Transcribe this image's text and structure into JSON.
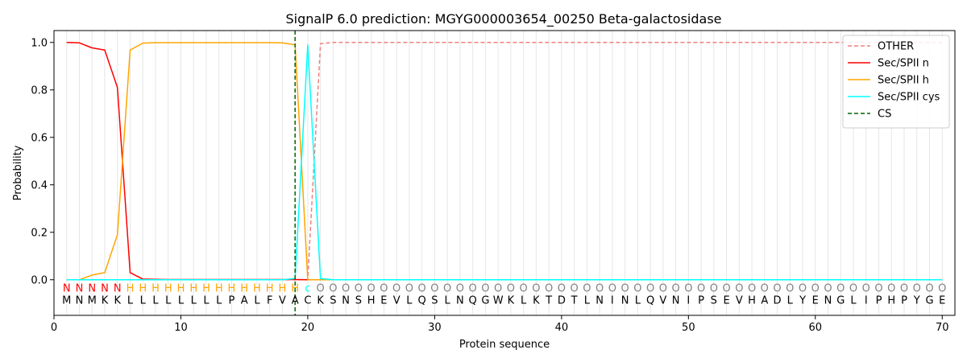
{
  "chart_data": {
    "type": "line",
    "title": "SignalP 6.0 prediction: MGYG000003654_00250 Beta-galactosidase",
    "xlabel": "Protein sequence",
    "ylabel": "Probability",
    "xlim": [
      0,
      71
    ],
    "ylim": [
      -0.15,
      1.05
    ],
    "xticks": [
      0,
      10,
      20,
      30,
      40,
      50,
      60,
      70
    ],
    "yticks": [
      0.0,
      0.2,
      0.4,
      0.6,
      0.8,
      1.0
    ],
    "ytick_labels": [
      "0.0",
      "0.2",
      "0.4",
      "0.6",
      "0.8",
      "1.0"
    ],
    "grid": "vertical lines at each residue",
    "legend_position": "top-right",
    "sequence": [
      "M",
      "N",
      "M",
      "K",
      "K",
      "L",
      "L",
      "L",
      "L",
      "L",
      "L",
      "L",
      "L",
      "P",
      "A",
      "L",
      "F",
      "V",
      "A",
      "C",
      "K",
      "S",
      "N",
      "S",
      "H",
      "E",
      "V",
      "L",
      "Q",
      "S",
      "L",
      "N",
      "Q",
      "G",
      "W",
      "K",
      "L",
      "K",
      "T",
      "D",
      "T",
      "L",
      "N",
      "I",
      "N",
      "L",
      "Q",
      "V",
      "N",
      "I",
      "P",
      "S",
      "E",
      "V",
      "H",
      "A",
      "D",
      "L",
      "Y",
      "E",
      "N",
      "G",
      "L",
      "I",
      "P",
      "H",
      "P",
      "Y",
      "G",
      "E"
    ],
    "annotation": [
      "N",
      "N",
      "N",
      "N",
      "N",
      "H",
      "H",
      "H",
      "H",
      "H",
      "H",
      "H",
      "H",
      "H",
      "H",
      "H",
      "H",
      "H",
      "H",
      "c",
      "O",
      "O",
      "O",
      "O",
      "O",
      "O",
      "O",
      "O",
      "O",
      "O",
      "O",
      "O",
      "O",
      "O",
      "O",
      "O",
      "O",
      "O",
      "O",
      "O",
      "O",
      "O",
      "O",
      "O",
      "O",
      "O",
      "O",
      "O",
      "O",
      "O",
      "O",
      "O",
      "O",
      "O",
      "O",
      "O",
      "O",
      "O",
      "O",
      "O",
      "O",
      "O",
      "O",
      "O",
      "O",
      "O",
      "O",
      "O",
      "O",
      "O"
    ],
    "annotation_colors": {
      "N": "#ff0000",
      "H": "#ffa500",
      "c": "#00ffff",
      "O": "#808080"
    },
    "x": [
      1,
      2,
      3,
      4,
      5,
      6,
      7,
      8,
      9,
      10,
      11,
      12,
      13,
      14,
      15,
      16,
      17,
      18,
      19,
      20,
      21,
      22,
      23,
      24,
      25,
      26,
      27,
      28,
      29,
      30,
      31,
      32,
      33,
      34,
      35,
      36,
      37,
      38,
      39,
      40,
      41,
      42,
      43,
      44,
      45,
      46,
      47,
      48,
      49,
      50,
      51,
      52,
      53,
      54,
      55,
      56,
      57,
      58,
      59,
      60,
      61,
      62,
      63,
      64,
      65,
      66,
      67,
      68,
      69,
      70
    ],
    "series": [
      {
        "name": "OTHER",
        "color": "#f08080",
        "dash": "dashed",
        "values": [
          0,
          0,
          0,
          0,
          0,
          0,
          0,
          0,
          0,
          0,
          0,
          0,
          0,
          0,
          0,
          0,
          0,
          0,
          0,
          0,
          0.995,
          1,
          1,
          1,
          1,
          1,
          1,
          1,
          1,
          1,
          1,
          1,
          1,
          1,
          1,
          1,
          1,
          1,
          1,
          1,
          1,
          1,
          1,
          1,
          1,
          1,
          1,
          1,
          1,
          1,
          1,
          1,
          1,
          1,
          1,
          1,
          1,
          1,
          1,
          1,
          1,
          1,
          1,
          1,
          1,
          1,
          1,
          1,
          1,
          1
        ]
      },
      {
        "name": "Sec/SPII n",
        "color": "#ff0000",
        "dash": "solid",
        "values": [
          1.0,
          0.998,
          0.977,
          0.968,
          0.81,
          0.03,
          0.003,
          0.002,
          0.001,
          0.001,
          0.001,
          0.001,
          0.001,
          0.001,
          0.001,
          0.001,
          0.001,
          0.001,
          0.001,
          0,
          0,
          0,
          0,
          0,
          0,
          0,
          0,
          0,
          0,
          0,
          0,
          0,
          0,
          0,
          0,
          0,
          0,
          0,
          0,
          0,
          0,
          0,
          0,
          0,
          0,
          0,
          0,
          0,
          0,
          0,
          0,
          0,
          0,
          0,
          0,
          0,
          0,
          0,
          0,
          0,
          0,
          0,
          0,
          0,
          0,
          0,
          0,
          0,
          0,
          0
        ]
      },
      {
        "name": "Sec/SPII h",
        "color": "#ffa500",
        "dash": "solid",
        "values": [
          0,
          0,
          0.02,
          0.03,
          0.19,
          0.968,
          0.997,
          0.999,
          0.999,
          0.999,
          0.999,
          0.999,
          0.999,
          0.999,
          0.999,
          0.999,
          0.999,
          0.998,
          0.99,
          0,
          0,
          0,
          0,
          0,
          0,
          0,
          0,
          0,
          0,
          0,
          0,
          0,
          0,
          0,
          0,
          0,
          0,
          0,
          0,
          0,
          0,
          0,
          0,
          0,
          0,
          0,
          0,
          0,
          0,
          0,
          0,
          0,
          0,
          0,
          0,
          0,
          0,
          0,
          0,
          0,
          0,
          0,
          0,
          0,
          0,
          0,
          0,
          0,
          0,
          0
        ]
      },
      {
        "name": "Sec/SPII cys",
        "color": "#00ffff",
        "dash": "solid",
        "values": [
          0,
          0,
          0,
          0,
          0,
          0,
          0,
          0,
          0,
          0,
          0,
          0,
          0,
          0,
          0,
          0,
          0,
          0,
          0.005,
          0.99,
          0.005,
          0,
          0,
          0,
          0,
          0,
          0,
          0,
          0,
          0,
          0,
          0,
          0,
          0,
          0,
          0,
          0,
          0,
          0,
          0,
          0,
          0,
          0,
          0,
          0,
          0,
          0,
          0,
          0,
          0,
          0,
          0,
          0,
          0,
          0,
          0,
          0,
          0,
          0,
          0,
          0,
          0,
          0,
          0,
          0,
          0,
          0,
          0,
          0,
          0
        ]
      }
    ],
    "cs": {
      "name": "CS",
      "color": "#006400",
      "x": 19
    }
  }
}
